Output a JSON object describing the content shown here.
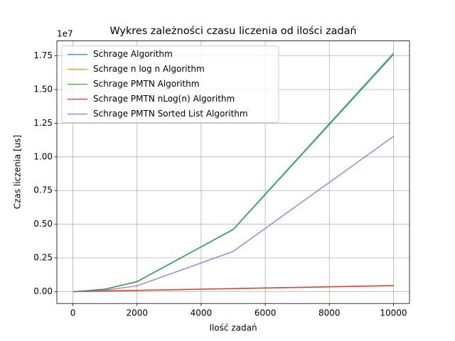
{
  "chart_data": {
    "type": "line",
    "title": "Wykres zależności czasu liczenia od ilości zadań",
    "xlabel": "Ilość zadań",
    "ylabel": "Czas liczenia [us]",
    "offset_text": "1e7",
    "x": [
      10,
      100,
      1000,
      2000,
      5000,
      10000
    ],
    "series": [
      {
        "name": "Schrage Algorithm",
        "color": "#1f77b4",
        "values": [
          0,
          2000,
          170000,
          730000,
          4600000,
          17600000
        ]
      },
      {
        "name": "Schrage n log n Algorithm",
        "color": "#ff7f0e",
        "values": [
          0,
          1000,
          40000,
          90000,
          220000,
          440000
        ]
      },
      {
        "name": "Schrage PMTN Algorithm",
        "color": "#2ca02c",
        "values": [
          0,
          2000,
          180000,
          740000,
          4620000,
          17700000
        ]
      },
      {
        "name": "Schrage PMTN nLog(n) Algorithm",
        "color": "#d62728",
        "values": [
          0,
          1000,
          40000,
          90000,
          220000,
          440000
        ]
      },
      {
        "name": "Schrage PMTN Sorted List Algorithm",
        "color": "#9467bd",
        "values": [
          0,
          1000,
          100000,
          420000,
          2980000,
          11520000
        ]
      }
    ],
    "xlim": [
      -500,
      10500
    ],
    "xticks": [
      0,
      2000,
      4000,
      6000,
      8000,
      10000
    ],
    "ylim": [
      -886000,
      18610000
    ],
    "yticks": [
      {
        "value": 0,
        "label": "0.00"
      },
      {
        "value": 2500000,
        "label": "0.25"
      },
      {
        "value": 5000000,
        "label": "0.50"
      },
      {
        "value": 7500000,
        "label": "0.75"
      },
      {
        "value": 10000000,
        "label": "1.00"
      },
      {
        "value": 12500000,
        "label": "1.25"
      },
      {
        "value": 15000000,
        "label": "1.50"
      },
      {
        "value": 17500000,
        "label": "1.75"
      }
    ],
    "grid": true,
    "legend": "upper-left"
  }
}
